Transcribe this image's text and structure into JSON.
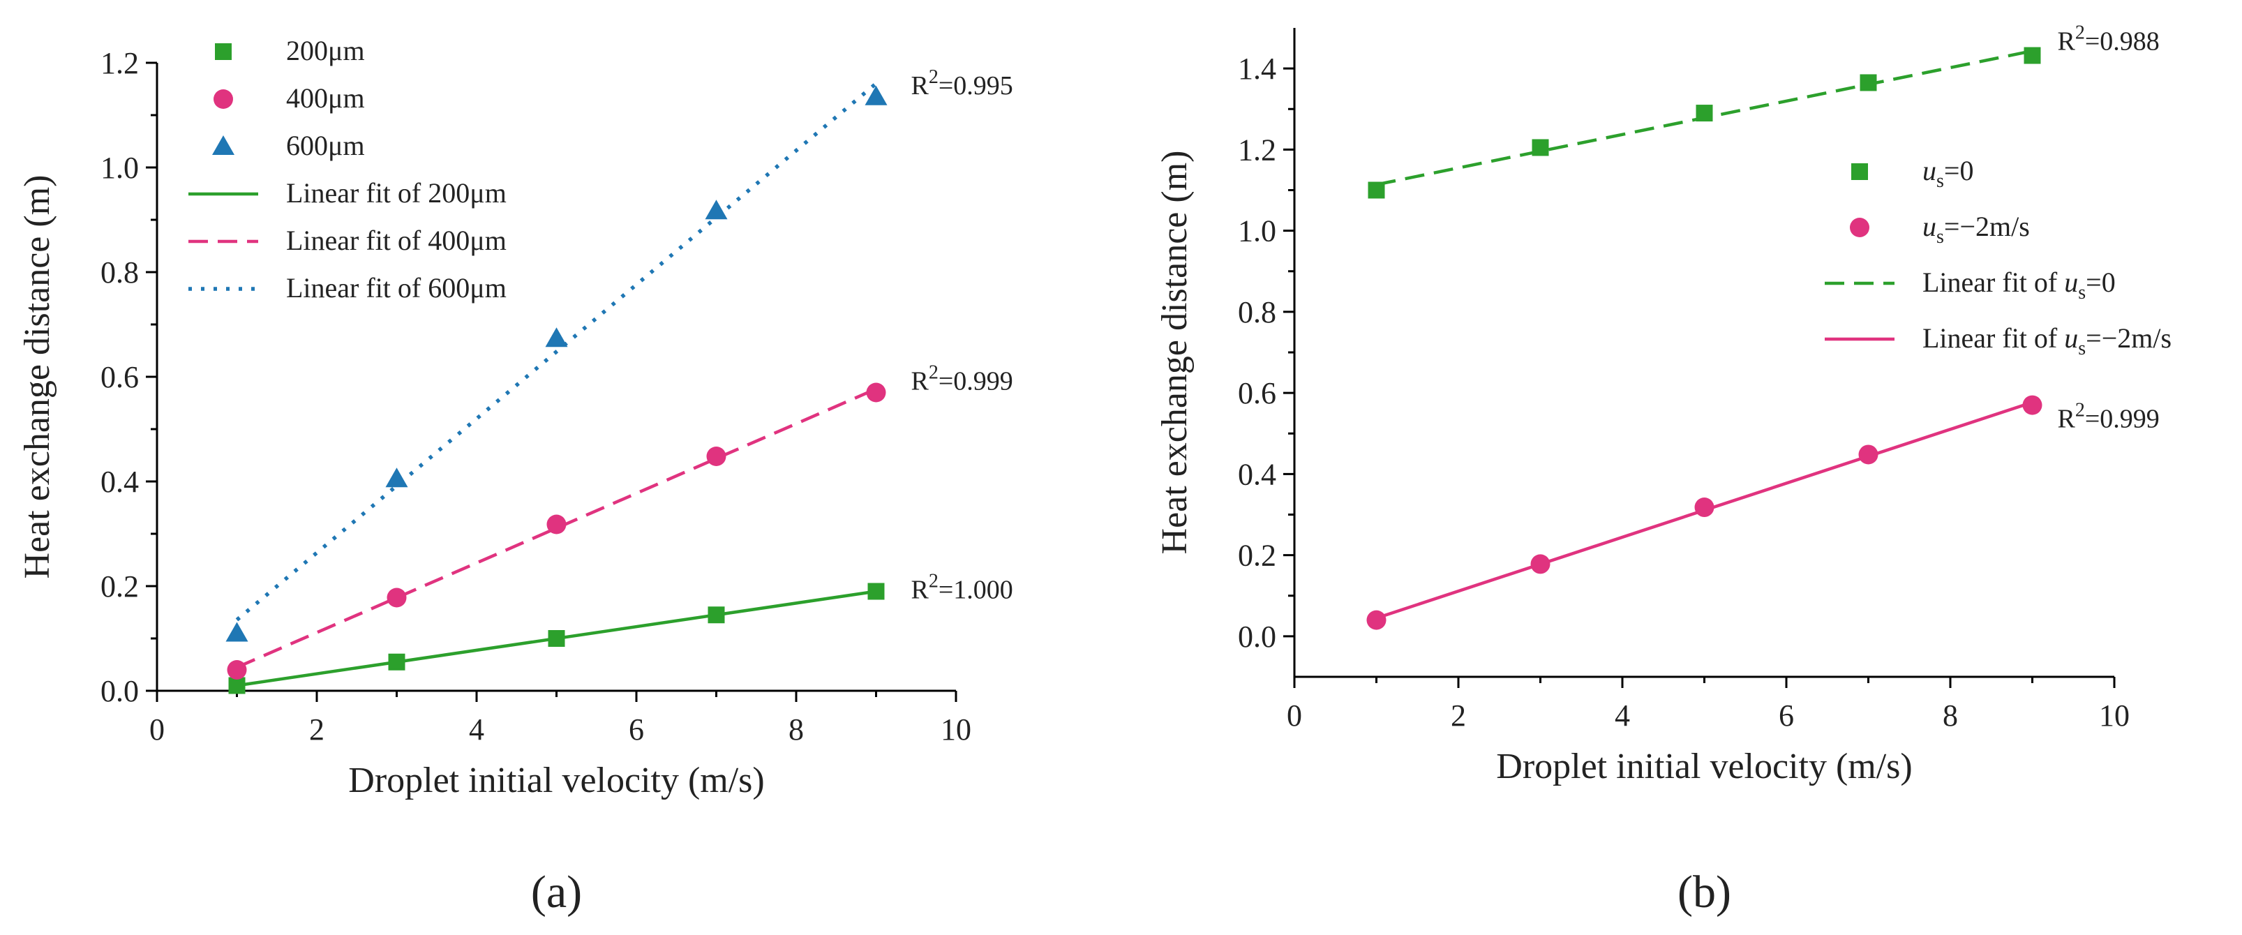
{
  "chart_data": [
    {
      "type": "scatter",
      "panel_label": "(a)",
      "xlabel": "Droplet initial velocity (m/s)",
      "ylabel": "Heat exchange distance (m)",
      "xlim": [
        0,
        10
      ],
      "ylim": [
        0,
        1.2
      ],
      "x_ticks": [
        0,
        2,
        4,
        6,
        8,
        10
      ],
      "x_tick_labels": [
        "0",
        "2",
        "4",
        "6",
        "8",
        "10"
      ],
      "y_ticks": [
        0,
        0.2,
        0.4,
        0.6,
        0.8,
        1.0,
        1.2
      ],
      "y_tick_labels": [
        "0.0",
        "0.2",
        "0.4",
        "0.6",
        "0.8",
        "1.0",
        "1.2"
      ],
      "legend_position": "top-left",
      "series": [
        {
          "name": "200μm",
          "marker": "square",
          "color": "#2ca02c",
          "x": [
            1,
            3,
            5,
            7,
            9
          ],
          "values": [
            0.01,
            0.055,
            0.1,
            0.145,
            0.19
          ],
          "fit_name": "Linear fit of 200μm",
          "fit_style": "solid",
          "fit_color": "#2ca02c",
          "r2_label": "R²=1.000"
        },
        {
          "name": "400μm",
          "marker": "circle",
          "color": "#e0337f",
          "x": [
            1,
            3,
            5,
            7,
            9
          ],
          "values": [
            0.04,
            0.178,
            0.318,
            0.448,
            0.57
          ],
          "fit_name": "Linear fit of 400μm",
          "fit_style": "dashed",
          "fit_color": "#e0337f",
          "r2_label": "R²=0.999"
        },
        {
          "name": "600μm",
          "marker": "triangle",
          "color": "#1f77b4",
          "x": [
            1,
            3,
            5,
            7,
            9
          ],
          "values": [
            0.11,
            0.405,
            0.673,
            0.917,
            1.135
          ],
          "fit_name": "Linear fit of 600μm",
          "fit_style": "dotted",
          "fit_color": "#1f77b4",
          "r2_label": "R²=0.995"
        }
      ]
    },
    {
      "type": "scatter",
      "panel_label": "(b)",
      "xlabel": "Droplet initial velocity (m/s)",
      "ylabel": "Heat exchange distance (m)",
      "xlim": [
        0,
        10
      ],
      "ylim": [
        -0.1,
        1.5
      ],
      "x_ticks": [
        0,
        2,
        4,
        6,
        8,
        10
      ],
      "x_tick_labels": [
        "0",
        "2",
        "4",
        "6",
        "8",
        "10"
      ],
      "y_ticks": [
        0,
        0.2,
        0.4,
        0.6,
        0.8,
        1.0,
        1.2,
        1.4
      ],
      "y_tick_labels": [
        "0.0",
        "0.2",
        "0.4",
        "0.6",
        "0.8",
        "1.0",
        "1.2",
        "1.4"
      ],
      "legend_position": "center-right",
      "series": [
        {
          "name": "us=0",
          "marker": "square",
          "color": "#2ca02c",
          "x": [
            1,
            3,
            5,
            7,
            9
          ],
          "values": [
            1.1,
            1.205,
            1.29,
            1.365,
            1.432
          ],
          "fit_name": "Linear fit of us=0",
          "fit_style": "dashed",
          "fit_color": "#2ca02c",
          "r2_label": "R²=0.988"
        },
        {
          "name": "us=−2m/s",
          "marker": "circle",
          "color": "#e0337f",
          "x": [
            1,
            3,
            5,
            7,
            9
          ],
          "values": [
            0.04,
            0.178,
            0.318,
            0.448,
            0.57
          ],
          "fit_name": "Linear fit of us=−2m/s",
          "fit_style": "solid",
          "fit_color": "#e0337f",
          "r2_label": "R²=0.999"
        }
      ]
    }
  ]
}
